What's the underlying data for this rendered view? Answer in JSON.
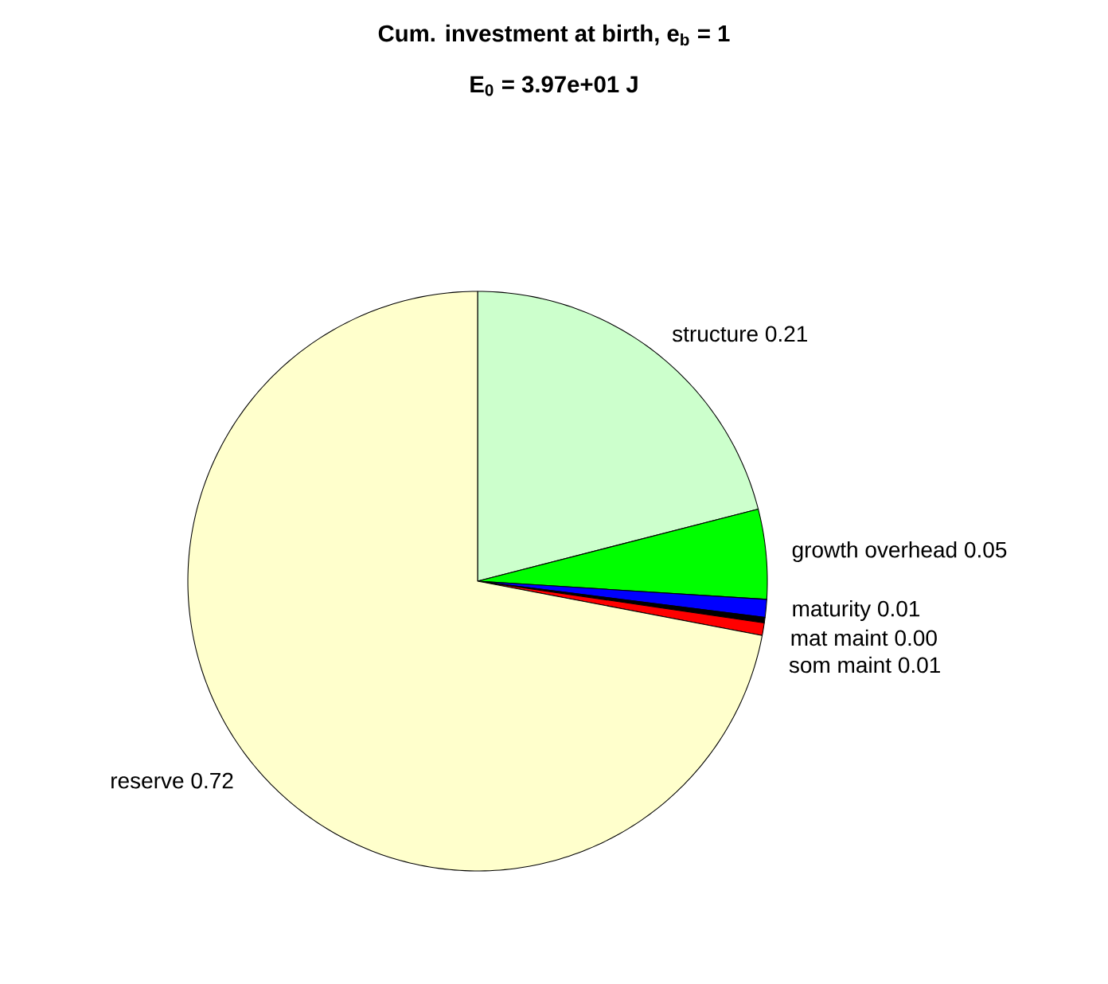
{
  "chart_data": {
    "type": "pie",
    "title": "Cum. investment at birth, e$_{b}$ = 1",
    "subtitle": "E$_{0}$ = 3.97e+01 J",
    "categories": [
      "structure",
      "growth overhead",
      "maturity",
      "mat maint",
      "som maint",
      "reserve"
    ],
    "values": [
      0.21,
      0.05,
      0.01,
      0.003,
      0.007,
      0.72
    ],
    "value_labels": [
      "0.21",
      "0.05",
      "0.01",
      "0.00",
      "0.01",
      "0.72"
    ],
    "colors": [
      "#ccffcc",
      "#00ff00",
      "#0000ff",
      "#000000",
      "#ff0000",
      "#ffffcc"
    ]
  }
}
